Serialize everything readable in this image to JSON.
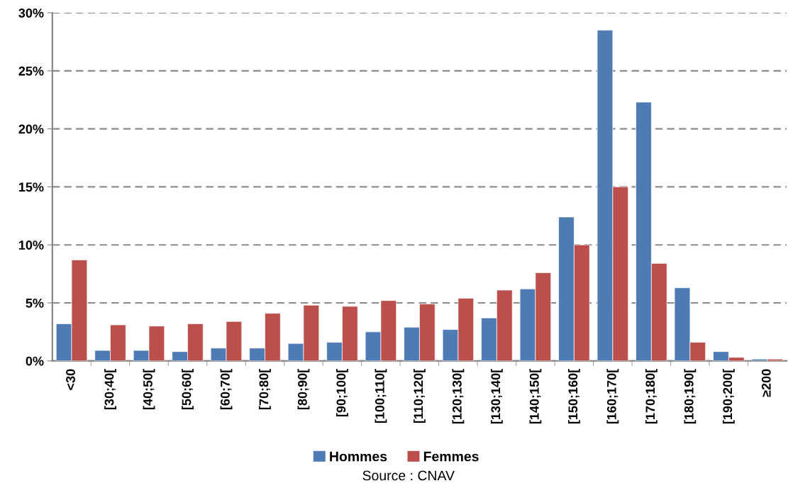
{
  "chart_data": {
    "type": "bar",
    "categories": [
      "<30",
      "[30;40[",
      "[40;50[",
      "[50;60[",
      "[60;70[",
      "[70;80[",
      "[80;90[",
      "[90;100[",
      "[100;110[",
      "[110;120[",
      "[120;130[",
      "[130;140[",
      "[140;150[",
      "[150;160[",
      "[160;170[",
      "[170;180[",
      "[180;190[",
      "[190;200[",
      "≥200"
    ],
    "series": [
      {
        "name": "Hommes",
        "color": "#4f7bb5",
        "values": [
          3.2,
          0.9,
          0.9,
          0.8,
          1.1,
          1.1,
          1.5,
          1.6,
          2.5,
          2.9,
          2.7,
          3.7,
          6.2,
          12.4,
          28.5,
          22.3,
          6.3,
          0.8,
          0.15
        ]
      },
      {
        "name": "Femmes",
        "color": "#bc4f4c",
        "values": [
          8.7,
          3.1,
          3.0,
          3.2,
          3.4,
          4.1,
          4.8,
          4.7,
          5.2,
          4.9,
          5.4,
          6.1,
          7.6,
          10.0,
          15.0,
          8.4,
          1.6,
          0.3,
          0.15
        ]
      }
    ],
    "ylim": [
      0,
      30
    ],
    "yticks": [
      {
        "value": 0,
        "label": "0%"
      },
      {
        "value": 5,
        "label": "5%"
      },
      {
        "value": 10,
        "label": "10%"
      },
      {
        "value": 15,
        "label": "15%"
      },
      {
        "value": 20,
        "label": "20%"
      },
      {
        "value": 25,
        "label": "25%"
      },
      {
        "value": 30,
        "label": "30%"
      }
    ],
    "grid": "y",
    "legend": "bottom",
    "annotations": [
      "Source : CNAV"
    ]
  }
}
